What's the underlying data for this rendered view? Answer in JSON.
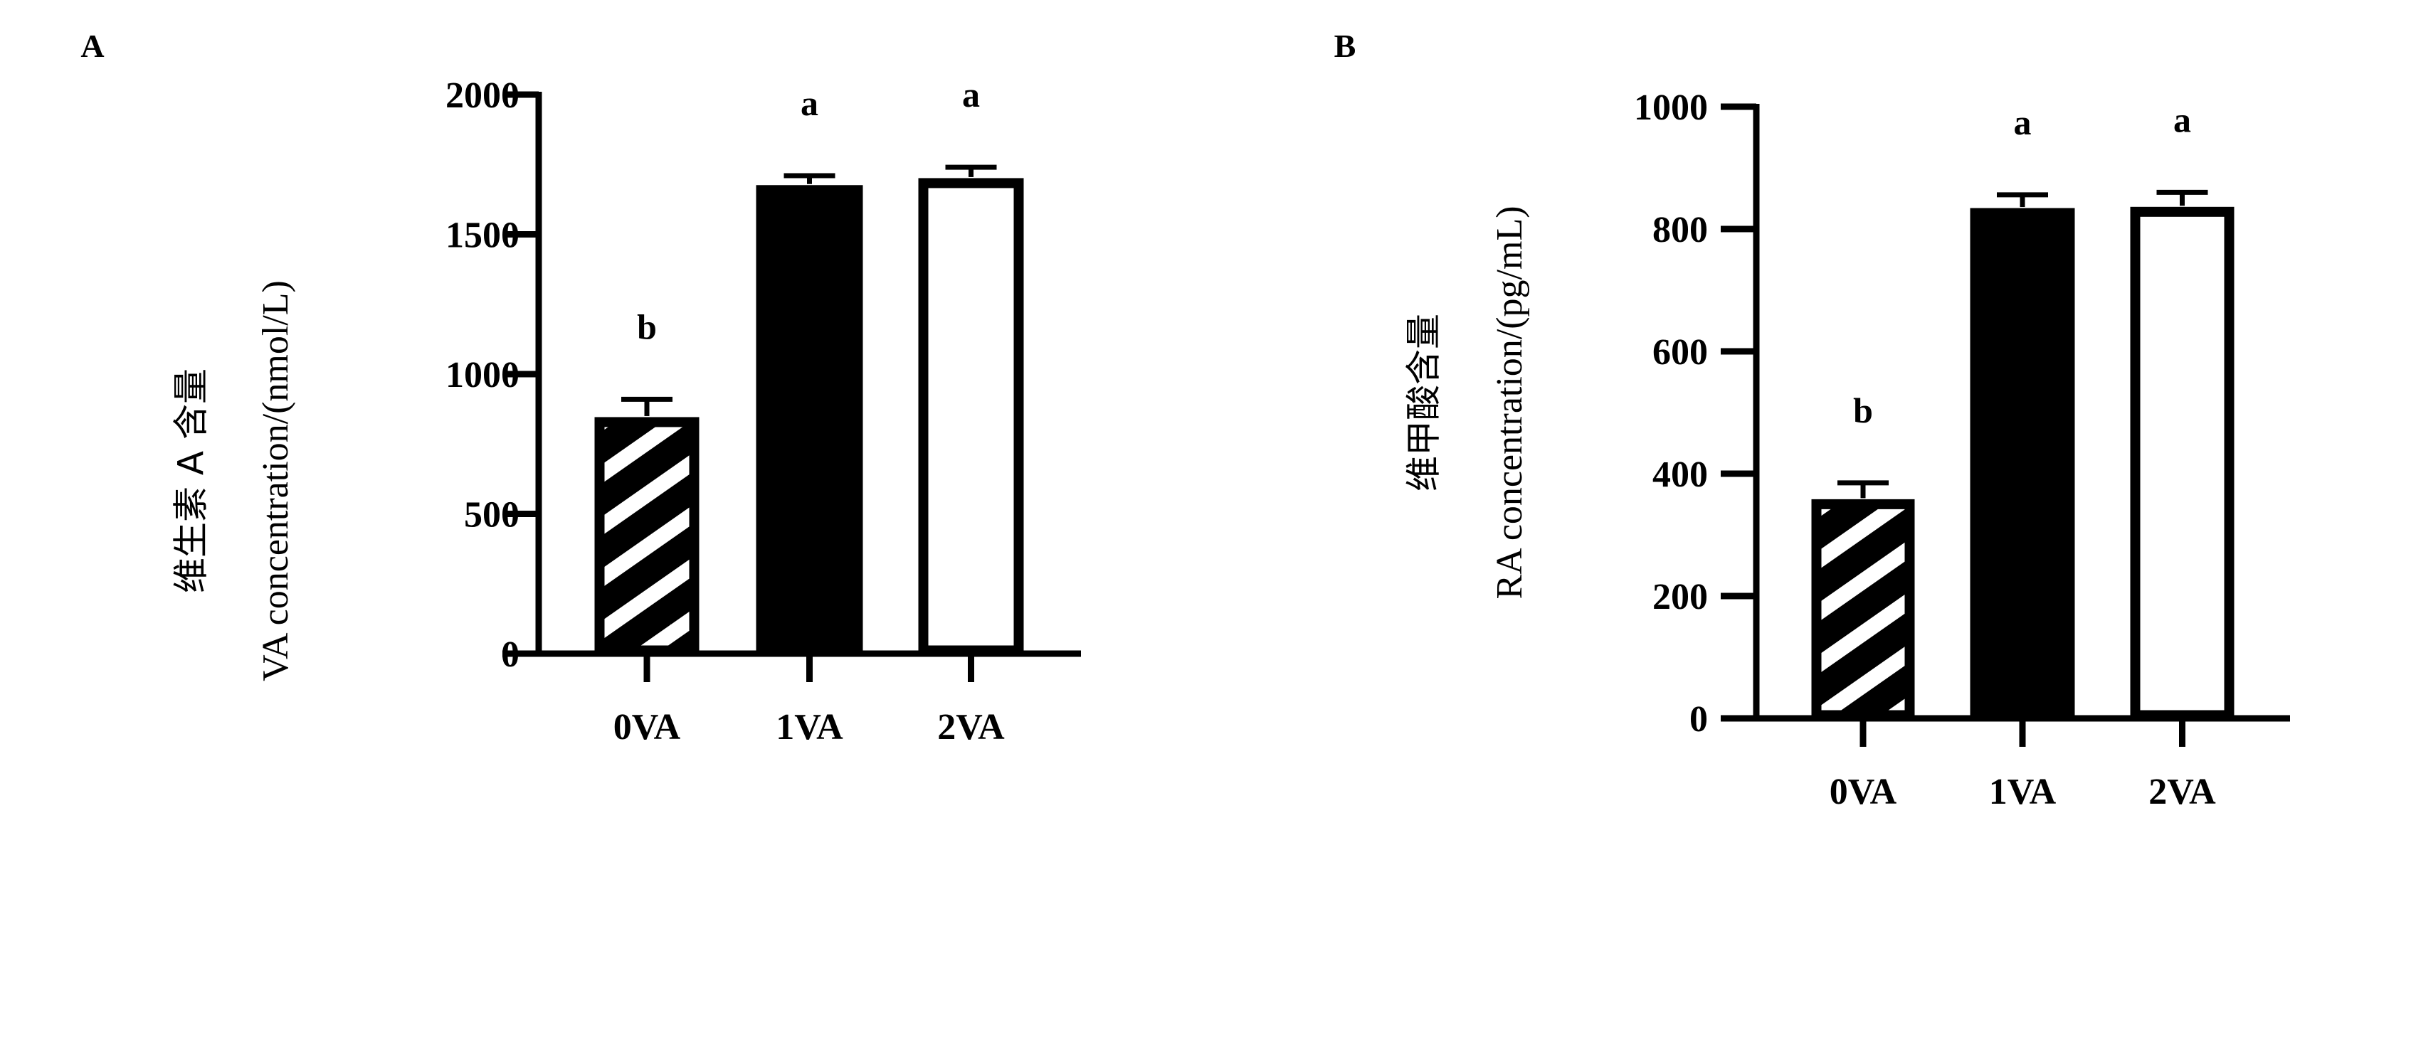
{
  "chart_data": [
    {
      "type": "bar",
      "panel_label": "A",
      "ylabel_cn": "维生素 A 含量",
      "ylabel": "VA concentration/(nmol/L)",
      "categories": [
        "0VA",
        "1VA",
        "2VA"
      ],
      "values": [
        850,
        1680,
        1705
      ],
      "errors": [
        60,
        30,
        35
      ],
      "significance": [
        "b",
        "a",
        "a"
      ],
      "fills": [
        "hatched",
        "black",
        "white"
      ],
      "ylim": [
        0,
        2000
      ],
      "yticks": [
        0,
        500,
        1000,
        1500,
        2000
      ],
      "grid": false
    },
    {
      "type": "bar",
      "panel_label": "B",
      "ylabel_cn": "维甲酸含量",
      "ylabel": "RA concentration/(pg/mL)",
      "categories": [
        "0VA",
        "1VA",
        "2VA"
      ],
      "values": [
        360,
        836,
        838
      ],
      "errors": [
        25,
        20,
        22
      ],
      "significance": [
        "b",
        "a",
        "a"
      ],
      "fills": [
        "hatched",
        "black",
        "white"
      ],
      "ylim": [
        0,
        1000
      ],
      "yticks": [
        0,
        200,
        400,
        600,
        800,
        1000
      ],
      "grid": false
    }
  ]
}
